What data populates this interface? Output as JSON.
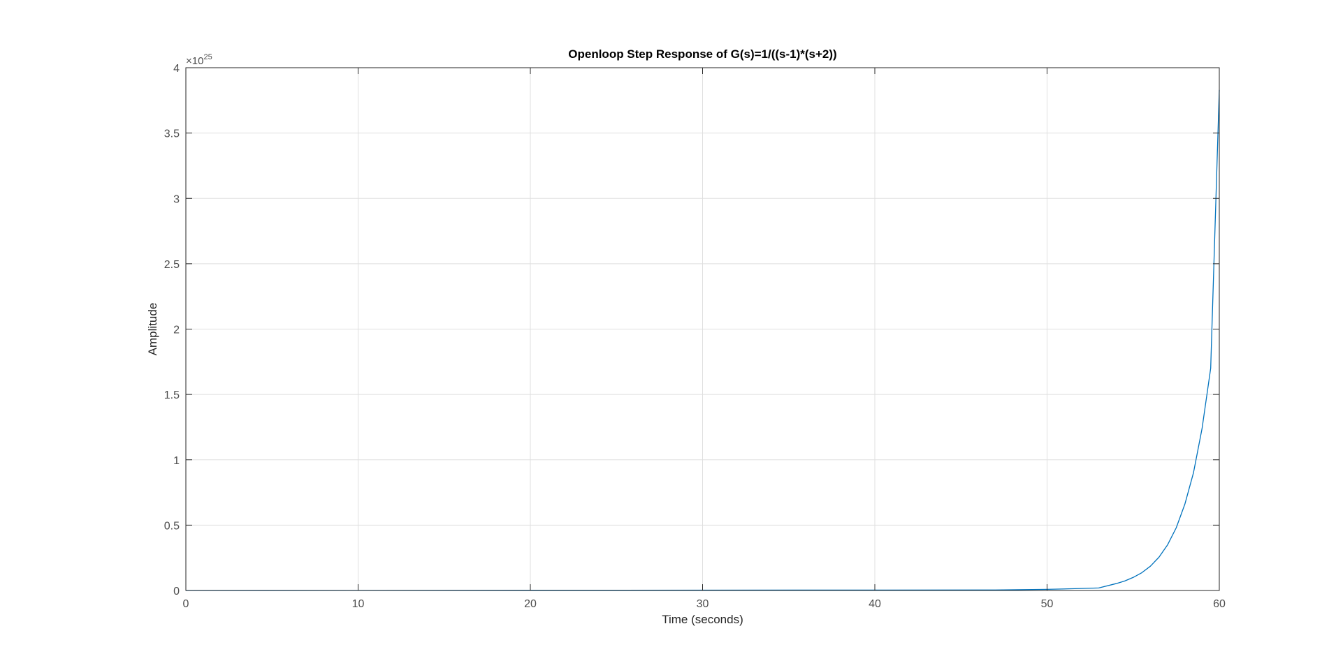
{
  "chart_data": {
    "type": "line",
    "title": "Openloop Step Response of G(s)=1/((s-1)*(s+2))",
    "xlabel": "Time (seconds)",
    "ylabel": "Amplitude",
    "xlim": [
      0,
      60
    ],
    "ylim": [
      0,
      4
    ],
    "y_scale_factor": {
      "base": "×10",
      "exponent": "25"
    },
    "x_ticks": [
      "0",
      "10",
      "20",
      "30",
      "40",
      "50",
      "60"
    ],
    "y_ticks": [
      "0",
      "0.5",
      "1",
      "1.5",
      "2",
      "2.5",
      "3",
      "3.5",
      "4"
    ],
    "grid": true,
    "series": [
      {
        "color": "#0072bd",
        "x": [
          0,
          47,
          50,
          52,
          53,
          54,
          54.5,
          55,
          55.5,
          56,
          56.5,
          57,
          57.5,
          58,
          58.5,
          59,
          59.5,
          60
        ],
        "y": [
          0,
          0.004,
          0.0086,
          0.0153,
          0.0192,
          0.0524,
          0.072,
          0.1,
          0.136,
          0.186,
          0.255,
          0.35,
          0.48,
          0.66,
          0.9,
          1.24,
          1.7,
          3.83
        ]
      }
    ]
  }
}
